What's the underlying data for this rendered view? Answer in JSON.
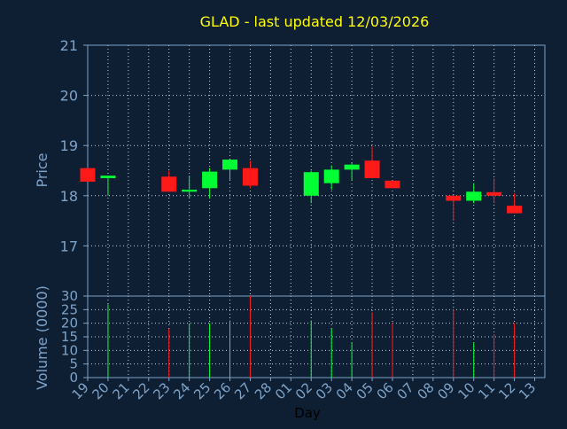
{
  "title": "GLAD - last updated 12/03/2026",
  "colors": {
    "background": "#0f1f33",
    "axis": "#7ea3c9",
    "title": "#ffff00",
    "up": "#00ff33",
    "down": "#ff1a1a",
    "grid": "#c8d2dc"
  },
  "chart_data": [
    {
      "type": "candlestick",
      "ylabel": "Price",
      "ylim": [
        16.0,
        21.0
      ],
      "yticks": [
        17,
        18,
        19,
        20,
        21
      ],
      "grid": true,
      "x": [
        "19",
        "20",
        "21",
        "22",
        "23",
        "24",
        "25",
        "26",
        "27",
        "28",
        "01",
        "02",
        "03",
        "04",
        "05",
        "06",
        "07",
        "08",
        "09",
        "10",
        "11",
        "12",
        "13"
      ],
      "series": [
        {
          "x": "19",
          "open": 18.55,
          "close": 18.28,
          "high": 18.55,
          "low": 18.28
        },
        {
          "x": "20",
          "open": 18.35,
          "close": 18.4,
          "high": 18.4,
          "low": 18.0
        },
        {
          "x": "23",
          "open": 18.38,
          "close": 18.08,
          "high": 18.5,
          "low": 18.08
        },
        {
          "x": "24",
          "open": 18.08,
          "close": 18.12,
          "high": 18.4,
          "low": 17.95
        },
        {
          "x": "25",
          "open": 18.15,
          "close": 18.48,
          "high": 18.55,
          "low": 17.95
        },
        {
          "x": "26",
          "open": 18.52,
          "close": 18.72,
          "high": 18.72,
          "low": 18.3
        },
        {
          "x": "27",
          "open": 18.55,
          "close": 18.2,
          "high": 18.7,
          "low": 18.15
        },
        {
          "x": "02",
          "open": 18.0,
          "close": 18.47,
          "high": 18.5,
          "low": 17.85
        },
        {
          "x": "03",
          "open": 18.25,
          "close": 18.52,
          "high": 18.6,
          "low": 18.12
        },
        {
          "x": "04",
          "open": 18.52,
          "close": 18.62,
          "high": 18.65,
          "low": 18.3
        },
        {
          "x": "05",
          "open": 18.7,
          "close": 18.35,
          "high": 18.98,
          "low": 18.35
        },
        {
          "x": "06",
          "open": 18.3,
          "close": 18.15,
          "high": 18.3,
          "low": 18.15
        },
        {
          "x": "09",
          "open": 18.0,
          "close": 17.9,
          "high": 18.0,
          "low": 17.5
        },
        {
          "x": "10",
          "open": 17.9,
          "close": 18.08,
          "high": 18.25,
          "low": 17.85
        },
        {
          "x": "11",
          "open": 18.07,
          "close": 18.0,
          "high": 18.35,
          "low": 17.85
        },
        {
          "x": "12",
          "open": 17.8,
          "close": 17.65,
          "high": 18.05,
          "low": 17.65
        }
      ]
    },
    {
      "type": "bar",
      "ylabel": "Volume (0000)",
      "xlabel": "Day",
      "ylim": [
        0,
        30
      ],
      "yticks": [
        0,
        5,
        10,
        15,
        20,
        25,
        30
      ],
      "grid": true,
      "x": [
        "19",
        "20",
        "21",
        "22",
        "23",
        "24",
        "25",
        "26",
        "27",
        "28",
        "01",
        "02",
        "03",
        "04",
        "05",
        "06",
        "07",
        "08",
        "09",
        "10",
        "11",
        "12",
        "13"
      ],
      "series": [
        {
          "x": "20",
          "value": 27,
          "dir": "up"
        },
        {
          "x": "23",
          "value": 18,
          "dir": "down"
        },
        {
          "x": "24",
          "value": 20,
          "dir": "up"
        },
        {
          "x": "25",
          "value": 20,
          "dir": "up"
        },
        {
          "x": "26",
          "value": 21,
          "dir": "up"
        },
        {
          "x": "27",
          "value": 30,
          "dir": "down"
        },
        {
          "x": "02",
          "value": 21,
          "dir": "up"
        },
        {
          "x": "03",
          "value": 18,
          "dir": "up"
        },
        {
          "x": "04",
          "value": 13,
          "dir": "up"
        },
        {
          "x": "05",
          "value": 24,
          "dir": "down"
        },
        {
          "x": "06",
          "value": 20,
          "dir": "down"
        },
        {
          "x": "09",
          "value": 25,
          "dir": "down"
        },
        {
          "x": "10",
          "value": 13,
          "dir": "up"
        },
        {
          "x": "11",
          "value": 16,
          "dir": "down"
        },
        {
          "x": "12",
          "value": 20,
          "dir": "down"
        }
      ]
    }
  ]
}
